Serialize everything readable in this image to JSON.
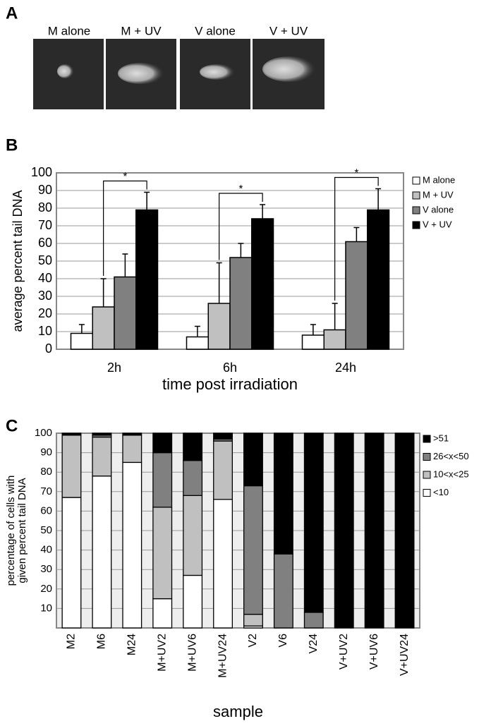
{
  "panel_labels": [
    "A",
    "B",
    "C"
  ],
  "panel_a": {
    "images": [
      "M alone",
      "M + UV",
      "V alone",
      "V + UV"
    ]
  },
  "chart_data": [
    {
      "type": "bar",
      "ylabel": "average percent tail DNA",
      "xlabel": "time post irradiation",
      "categories": [
        "2h",
        "6h",
        "24h"
      ],
      "series": [
        {
          "name": "M alone",
          "color": "#ffffff",
          "values": [
            9,
            7,
            8
          ],
          "errors": [
            5,
            6,
            6
          ]
        },
        {
          "name": "M + UV",
          "color": "#c0c0c0",
          "values": [
            24,
            26,
            11
          ],
          "errors": [
            16,
            23,
            15
          ]
        },
        {
          "name": "V alone",
          "color": "#808080",
          "values": [
            41,
            52,
            61
          ],
          "errors": [
            13,
            8,
            8
          ]
        },
        {
          "name": "V + UV",
          "color": "#000000",
          "values": [
            79,
            74,
            79
          ],
          "errors": [
            10,
            8,
            12
          ]
        }
      ],
      "significance_marks": [
        "*",
        "*",
        "*"
      ],
      "ylim": [
        0,
        100
      ],
      "yticks": [
        0,
        10,
        20,
        30,
        40,
        50,
        60,
        70,
        80,
        90,
        100
      ],
      "grid": true,
      "legend": "right"
    },
    {
      "type": "stacked-bar",
      "ylabel": [
        "percentage of cells with",
        "given percent tail DNA"
      ],
      "xlabel": "sample",
      "categories": [
        "M2",
        "M6",
        "M24",
        "M+UV2",
        "M+UV6",
        "M+UV24",
        "V2",
        "V6",
        "V24",
        "V+UV2",
        "V+UV6",
        "V+UV24"
      ],
      "series": [
        {
          "name": "<10",
          "color": "#ffffff",
          "values": [
            67,
            78,
            85,
            15,
            27,
            66,
            1,
            0,
            0,
            0,
            0,
            0
          ]
        },
        {
          "name": "10<x<25",
          "color": "#c0c0c0",
          "values": [
            32,
            20,
            14,
            47,
            41,
            30,
            6,
            0,
            0,
            0,
            0,
            0
          ]
        },
        {
          "name": "26<x<50",
          "color": "#808080",
          "values": [
            0,
            1,
            0,
            28,
            18,
            1,
            66,
            38,
            8,
            0,
            0,
            0
          ]
        },
        {
          "name": ">51",
          "color": "#000000",
          "values": [
            1,
            1,
            1,
            10,
            14,
            3,
            27,
            62,
            92,
            100,
            100,
            100
          ]
        }
      ],
      "ylim": [
        0,
        100
      ],
      "yticks": [
        10,
        20,
        30,
        40,
        50,
        60,
        70,
        80,
        90,
        100
      ],
      "grid": true,
      "legend": "right"
    }
  ]
}
